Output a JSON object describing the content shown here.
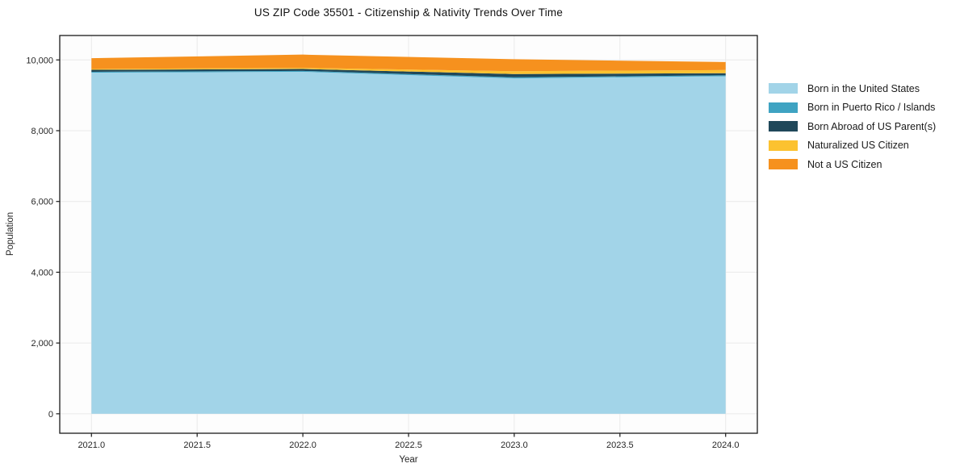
{
  "chart_data": {
    "type": "area",
    "stacked": true,
    "title": "US ZIP Code 35501 - Citizenship & Nativity Trends Over Time",
    "xlabel": "Year",
    "ylabel": "Population",
    "x": [
      2021,
      2022,
      2023,
      2024
    ],
    "series": [
      {
        "name": "Born in the United States",
        "color": "#a2d4e8",
        "values": [
          9640,
          9665,
          9480,
          9540
        ]
      },
      {
        "name": "Born in Puerto Rico / Islands",
        "color": "#3fa3c2",
        "values": [
          25,
          25,
          30,
          25
        ]
      },
      {
        "name": "Born Abroad of US Parent(s)",
        "color": "#20485a",
        "values": [
          55,
          55,
          90,
          60
        ]
      },
      {
        "name": "Naturalized US Citizen",
        "color": "#fcc230",
        "values": [
          25,
          30,
          80,
          90
        ]
      },
      {
        "name": "Not a US Citizen",
        "color": "#f6911e",
        "values": [
          305,
          375,
          340,
          225
        ]
      }
    ],
    "x_ticks": {
      "values": [
        2021.0,
        2021.5,
        2022.0,
        2022.5,
        2023.0,
        2023.5,
        2024.0
      ],
      "labels": [
        "2021.0",
        "2021.5",
        "2022.0",
        "2022.5",
        "2023.0",
        "2023.5",
        "2024.0"
      ]
    },
    "y_ticks": {
      "values": [
        0,
        2000,
        4000,
        6000,
        8000,
        10000
      ],
      "labels": [
        "0",
        "2,000",
        "4,000",
        "6,000",
        "8,000",
        "10,000"
      ]
    },
    "xlim": [
      2020.85,
      2024.15
    ],
    "ylim": [
      -550,
      10690
    ],
    "grid": true,
    "legend_position": "outside-right",
    "style": {
      "grid_color": "#eaeaea",
      "spine_color": "#1a1a1a",
      "plot_bg": "#fdfdfd"
    }
  }
}
